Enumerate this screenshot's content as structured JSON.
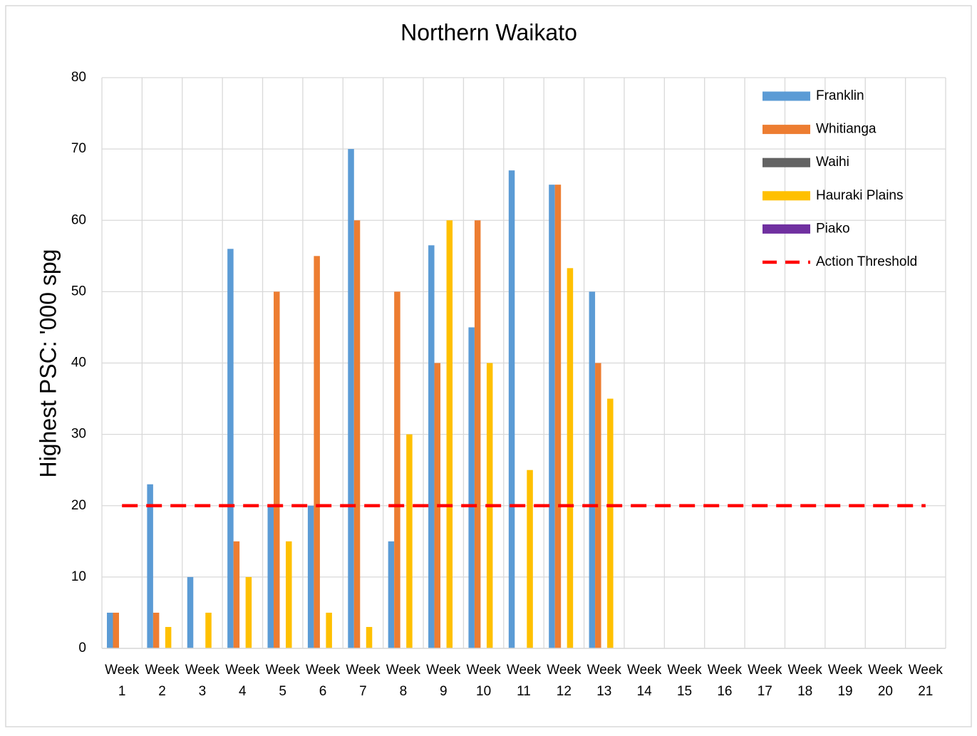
{
  "chart_data": {
    "type": "bar",
    "title": "Northern Waikato",
    "y_label": "Highest PSC: '000 spg",
    "categories": [
      "Week 1",
      "Week 2",
      "Week 3",
      "Week 4",
      "Week 5",
      "Week 6",
      "Week 7",
      "Week 8",
      "Week 9",
      "Week 10",
      "Week 11",
      "Week 12",
      "Week 13",
      "Week 14",
      "Week 15",
      "Week 16",
      "Week 17",
      "Week 18",
      "Week 19",
      "Week 20",
      "Week 21"
    ],
    "series": [
      {
        "name": "Franklin",
        "color": "#5b9bd5",
        "values": [
          5,
          23,
          10,
          56,
          20,
          20,
          70,
          15,
          56.5,
          45,
          67,
          65,
          50,
          null,
          null,
          null,
          null,
          null,
          null,
          null,
          null
        ]
      },
      {
        "name": "Whitianga",
        "color": "#ed7d31",
        "values": [
          5,
          5,
          null,
          15,
          50,
          55,
          60,
          50,
          40,
          60,
          null,
          65,
          40,
          null,
          null,
          null,
          null,
          null,
          null,
          null,
          null
        ]
      },
      {
        "name": "Waihi",
        "color": "#636363",
        "values": [
          null,
          null,
          null,
          null,
          null,
          null,
          null,
          null,
          null,
          null,
          null,
          null,
          null,
          null,
          null,
          null,
          null,
          null,
          null,
          null,
          null
        ]
      },
      {
        "name": "Hauraki Plains",
        "color": "#ffc000",
        "values": [
          null,
          3,
          5,
          10,
          15,
          5,
          3,
          30,
          60,
          40,
          25,
          53.3,
          35,
          null,
          null,
          null,
          null,
          null,
          null,
          null,
          null
        ]
      },
      {
        "name": "Piako",
        "color": "#7030a0",
        "values": [
          null,
          null,
          null,
          null,
          null,
          null,
          null,
          null,
          null,
          null,
          null,
          null,
          null,
          null,
          null,
          null,
          null,
          null,
          null,
          null,
          null
        ]
      },
      {
        "name": "Action Threshold",
        "type": "line",
        "color": "#ff0000",
        "dashed": true,
        "values": [
          20,
          20,
          20,
          20,
          20,
          20,
          20,
          20,
          20,
          20,
          20,
          20,
          20,
          20,
          20,
          20,
          20,
          20,
          20,
          20,
          20
        ]
      }
    ],
    "ylim": [
      0,
      80
    ],
    "yticks": [
      0,
      10,
      20,
      30,
      40,
      50,
      60,
      70,
      80
    ],
    "grid": true,
    "legend": "top-right"
  }
}
